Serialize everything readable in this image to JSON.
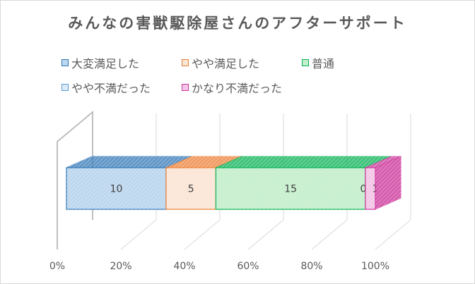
{
  "chart_data": {
    "type": "bar",
    "orientation": "horizontal",
    "stacked": "percent",
    "three_d": true,
    "title": "みんなの害獣駆除屋さんのアフターサポート",
    "xlim": [
      0,
      100
    ],
    "ticks": [
      "0%",
      "20%",
      "40%",
      "60%",
      "80%",
      "100%"
    ],
    "legend_position": "top",
    "series": [
      {
        "name": "大変満足した",
        "value": 10,
        "label": "10",
        "color": "#2e75b6",
        "face": "#bdd7ee"
      },
      {
        "name": "やや満足した",
        "value": 5,
        "label": "5",
        "color": "#ed7d31",
        "face": "#fbe5d6"
      },
      {
        "name": "普通",
        "value": 15,
        "label": "15",
        "color": "#00b050",
        "face": "#c6efce"
      },
      {
        "name": "やや不満だった",
        "value": 0,
        "label": "0",
        "color": "#5b9bd5",
        "face": "#ddebf7"
      },
      {
        "name": "かなり不満だった",
        "value": 1,
        "label": "1",
        "color": "#cc3399",
        "face": "#f4c6e7"
      }
    ]
  }
}
